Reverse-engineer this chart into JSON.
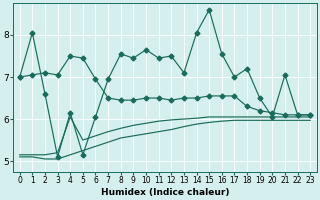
{
  "xlabel": "Humidex (Indice chaleur)",
  "background_color": "#d4efed",
  "grid_color": "#b0ddd9",
  "line_color": "#1a6b5a",
  "xlim": [
    -0.5,
    23.5
  ],
  "ylim": [
    4.75,
    8.75
  ],
  "x_ticks": [
    0,
    1,
    2,
    3,
    4,
    5,
    6,
    7,
    8,
    9,
    10,
    11,
    12,
    13,
    14,
    15,
    16,
    17,
    18,
    19,
    20,
    21,
    22,
    23
  ],
  "yticks": [
    5,
    6,
    7,
    8
  ],
  "main_line": [
    7.0,
    8.05,
    6.6,
    5.1,
    6.15,
    5.15,
    6.05,
    6.95,
    7.55,
    7.45,
    7.65,
    7.45,
    7.5,
    7.1,
    8.05,
    8.6,
    7.55,
    7.0,
    7.2,
    6.5,
    6.05,
    7.05,
    6.1,
    6.1
  ],
  "upper_line": [
    7.0,
    7.05,
    7.1,
    7.05,
    7.5,
    7.45,
    6.95,
    6.5,
    6.45,
    6.45,
    6.5,
    6.5,
    6.45,
    6.5,
    6.5,
    6.55,
    6.55,
    6.55,
    6.3,
    6.2,
    6.15,
    6.1,
    6.1,
    6.1
  ],
  "lower_line1": [
    5.15,
    5.15,
    5.15,
    5.2,
    6.05,
    5.5,
    5.6,
    5.7,
    5.78,
    5.85,
    5.9,
    5.95,
    5.98,
    6.0,
    6.02,
    6.05,
    6.05,
    6.05,
    6.05,
    6.05,
    6.05,
    6.05,
    6.05,
    6.05
  ],
  "lower_line2": [
    5.1,
    5.1,
    5.05,
    5.05,
    5.15,
    5.25,
    5.35,
    5.45,
    5.55,
    5.6,
    5.65,
    5.7,
    5.75,
    5.82,
    5.88,
    5.92,
    5.95,
    5.97,
    5.97,
    5.97,
    5.97,
    5.97,
    5.97,
    5.97
  ],
  "markersize": 2.5,
  "linewidth": 0.85,
  "tick_fontsize": 5.5,
  "xlabel_fontsize": 6.5
}
